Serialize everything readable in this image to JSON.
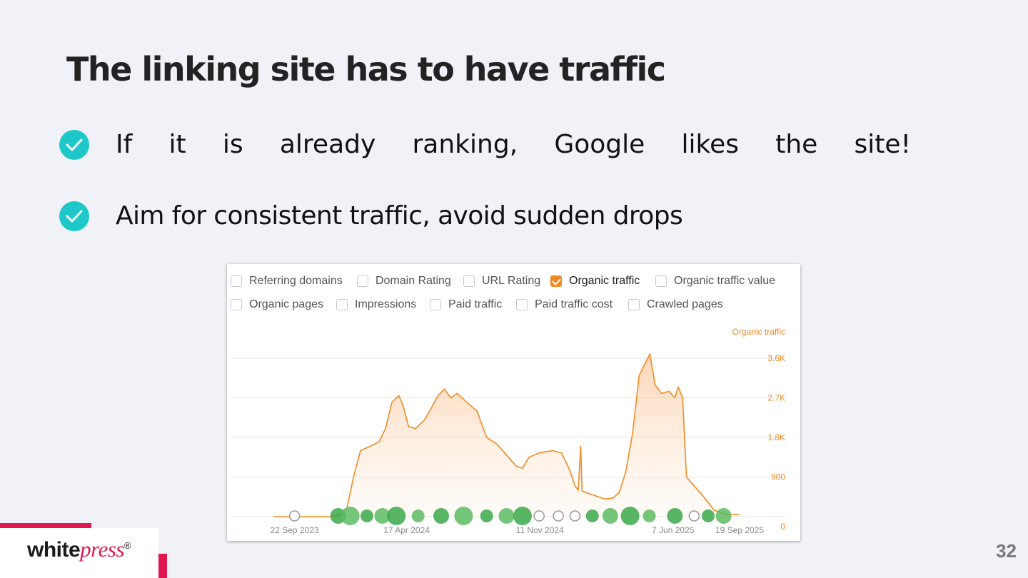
{
  "slide": {
    "title": "The linking site has to have traffic",
    "bullets": [
      {
        "icon": "check-circle-icon",
        "words": [
          "If",
          "it",
          "is",
          "already",
          "ranking,",
          "Google",
          "likes",
          "the",
          "site!"
        ]
      },
      {
        "icon": "check-circle-icon",
        "text": "Aim for consistent traffic, avoid sudden drops"
      }
    ],
    "page_number": "32",
    "accent_color": "#e0174f",
    "check_color": "#1ec8c8"
  },
  "logo": {
    "part1": "white",
    "part2": "press",
    "mark": "®"
  },
  "metrics_panel": {
    "options": [
      {
        "label": "Referring domains",
        "checked": false
      },
      {
        "label": "Domain Rating",
        "checked": false
      },
      {
        "label": "URL Rating",
        "checked": false
      },
      {
        "label": "Organic traffic",
        "checked": true
      },
      {
        "label": "Organic traffic value",
        "checked": false
      },
      {
        "label": "Organic pages",
        "checked": false
      },
      {
        "label": "Impressions",
        "checked": false
      },
      {
        "label": "Paid traffic",
        "checked": false
      },
      {
        "label": "Paid traffic cost",
        "checked": false
      },
      {
        "label": "Crawled pages",
        "checked": false
      }
    ]
  },
  "chart_data": {
    "type": "area",
    "series": [
      {
        "name": "Organic traffic",
        "color": "#f08a24",
        "points": [
          [
            "2023-09-22",
            0
          ],
          [
            "2023-12-20",
            0
          ],
          [
            "2024-01-05",
            40
          ],
          [
            "2024-01-15",
            200
          ],
          [
            "2024-01-25",
            900
          ],
          [
            "2024-02-05",
            1500
          ],
          [
            "2024-02-20",
            1600
          ],
          [
            "2024-03-05",
            1700
          ],
          [
            "2024-03-15",
            2000
          ],
          [
            "2024-03-25",
            2600
          ],
          [
            "2024-04-05",
            2750
          ],
          [
            "2024-04-12",
            2500
          ],
          [
            "2024-04-20",
            2050
          ],
          [
            "2024-05-01",
            2000
          ],
          [
            "2024-05-15",
            2200
          ],
          [
            "2024-05-25",
            2450
          ],
          [
            "2024-06-05",
            2750
          ],
          [
            "2024-06-15",
            2900
          ],
          [
            "2024-06-25",
            2700
          ],
          [
            "2024-07-05",
            2800
          ],
          [
            "2024-07-20",
            2600
          ],
          [
            "2024-08-05",
            2400
          ],
          [
            "2024-08-20",
            1800
          ],
          [
            "2024-09-05",
            1650
          ],
          [
            "2024-09-20",
            1400
          ],
          [
            "2024-10-05",
            1150
          ],
          [
            "2024-10-15",
            1100
          ],
          [
            "2024-10-25",
            1350
          ],
          [
            "2024-11-10",
            1450
          ],
          [
            "2024-12-01",
            1500
          ],
          [
            "2024-12-15",
            1450
          ],
          [
            "2024-12-28",
            1050
          ],
          [
            "2025-01-05",
            700
          ],
          [
            "2025-01-10",
            600
          ],
          [
            "2025-01-14",
            1600
          ],
          [
            "2025-01-16",
            580
          ],
          [
            "2025-02-01",
            500
          ],
          [
            "2025-02-20",
            400
          ],
          [
            "2025-03-05",
            420
          ],
          [
            "2025-03-15",
            550
          ],
          [
            "2025-03-25",
            1000
          ],
          [
            "2025-04-05",
            1900
          ],
          [
            "2025-04-15",
            3200
          ],
          [
            "2025-04-25",
            3500
          ],
          [
            "2025-05-02",
            3700
          ],
          [
            "2025-05-10",
            3000
          ],
          [
            "2025-05-20",
            2800
          ],
          [
            "2025-06-01",
            2850
          ],
          [
            "2025-06-10",
            2700
          ],
          [
            "2025-06-15",
            2950
          ],
          [
            "2025-06-22",
            2700
          ],
          [
            "2025-06-28",
            900
          ],
          [
            "2025-07-10",
            700
          ],
          [
            "2025-07-25",
            450
          ],
          [
            "2025-08-10",
            150
          ],
          [
            "2025-08-25",
            60
          ],
          [
            "2025-09-19",
            40
          ]
        ]
      }
    ],
    "y_axis_title": "Organic traffic",
    "ylim": [
      0,
      3600
    ],
    "yticks": [
      "0",
      "900",
      "1.8K",
      "2.7K",
      "3.6K"
    ],
    "xlim": [
      "2023-09-22",
      "2025-09-19"
    ],
    "xticks": [
      "22 Sep 2023",
      "17 Apr 2024",
      "11 Nov 2024",
      "7 Jun 2025",
      "19 Sep 2025"
    ],
    "grid": true,
    "markers_row": [
      {
        "date": "2023-10-25",
        "type": "google-update-icon"
      },
      {
        "date": "2024-01-01",
        "type": "link"
      },
      {
        "date": "2024-01-20",
        "type": "link"
      },
      {
        "date": "2024-02-15",
        "type": "link"
      },
      {
        "date": "2024-03-10",
        "type": "link"
      },
      {
        "date": "2024-04-01",
        "type": "link"
      },
      {
        "date": "2024-05-05",
        "type": "link"
      },
      {
        "date": "2024-06-10",
        "type": "link"
      },
      {
        "date": "2024-07-15",
        "type": "link"
      },
      {
        "date": "2024-08-20",
        "type": "link"
      },
      {
        "date": "2024-09-20",
        "type": "link"
      },
      {
        "date": "2024-10-15",
        "type": "link"
      },
      {
        "date": "2024-11-10",
        "type": "ahrefs-update-icon"
      },
      {
        "date": "2024-12-10",
        "type": "google-update-icon"
      },
      {
        "date": "2025-01-05",
        "type": "google-update-icon"
      },
      {
        "date": "2025-02-01",
        "type": "link"
      },
      {
        "date": "2025-03-01",
        "type": "link"
      },
      {
        "date": "2025-04-01",
        "type": "link"
      },
      {
        "date": "2025-05-01",
        "type": "link"
      },
      {
        "date": "2025-06-10",
        "type": "link"
      },
      {
        "date": "2025-07-10",
        "type": "google-update-icon"
      },
      {
        "date": "2025-08-01",
        "type": "link"
      },
      {
        "date": "2025-08-25",
        "type": "link"
      }
    ]
  }
}
